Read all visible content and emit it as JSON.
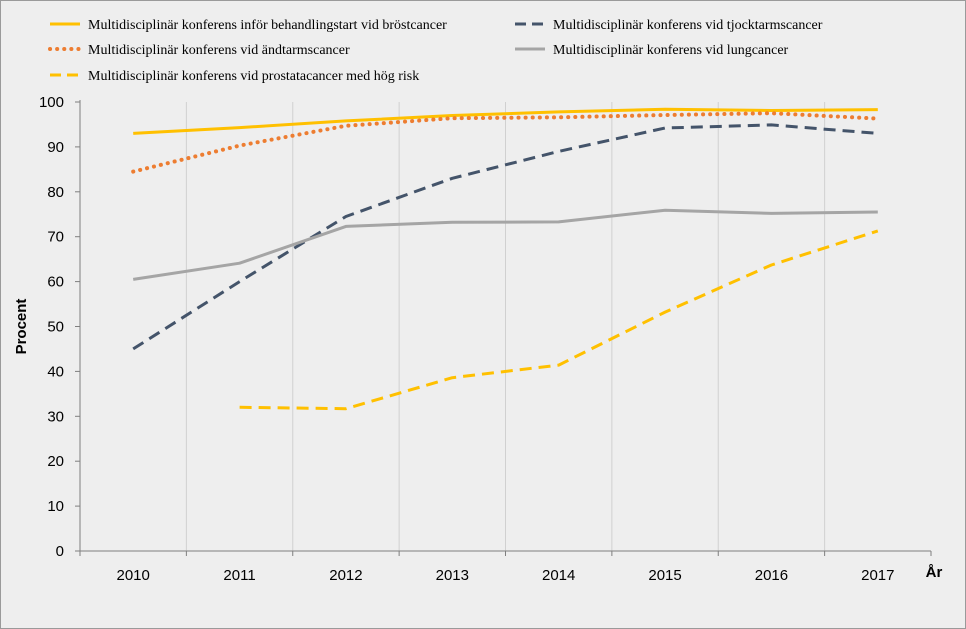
{
  "chart_data": {
    "type": "line",
    "title": "",
    "xlabel": "År",
    "ylabel": "Procent",
    "ylim": [
      0,
      100
    ],
    "yticks": [
      "0",
      "10",
      "20",
      "30",
      "40",
      "50",
      "60",
      "70",
      "80",
      "90",
      "100"
    ],
    "categories": [
      "2010",
      "2011",
      "2012",
      "2013",
      "2014",
      "2015",
      "2016",
      "2017"
    ],
    "legend_position": "top",
    "series": [
      {
        "name": "Multidisciplinär konferens inför behandlingstart vid bröstcancer",
        "color": "#ffc000",
        "style": "solid",
        "values": [
          93,
          94.3,
          95.8,
          97,
          97.8,
          98.4,
          98.1,
          98.3
        ]
      },
      {
        "name": "Multidisciplinär konferens vid tjocktarmscancer",
        "color": "#44546a",
        "style": "dash",
        "values": [
          45,
          60,
          74.5,
          83,
          89,
          94.2,
          94.9,
          93
        ]
      },
      {
        "name": "Multidisciplinär konferens vid ändtarmscancer",
        "color": "#ed7d31",
        "style": "dot",
        "values": [
          84.5,
          90.3,
          94.7,
          96.4,
          96.6,
          97.1,
          97.5,
          96.3
        ]
      },
      {
        "name": "Multidisciplinär konferens vid lungcancer",
        "color": "#a5a5a5",
        "style": "solid",
        "values": [
          60.5,
          64.1,
          72.3,
          73.2,
          73.3,
          75.9,
          75.2,
          75.5
        ]
      },
      {
        "name": "Multidisciplinär konferens vid prostatacancer med hög risk",
        "color": "#ffc000",
        "style": "dash",
        "values": [
          null,
          32,
          31.7,
          38.6,
          41.4,
          53.2,
          63.7,
          71.3
        ]
      }
    ]
  }
}
